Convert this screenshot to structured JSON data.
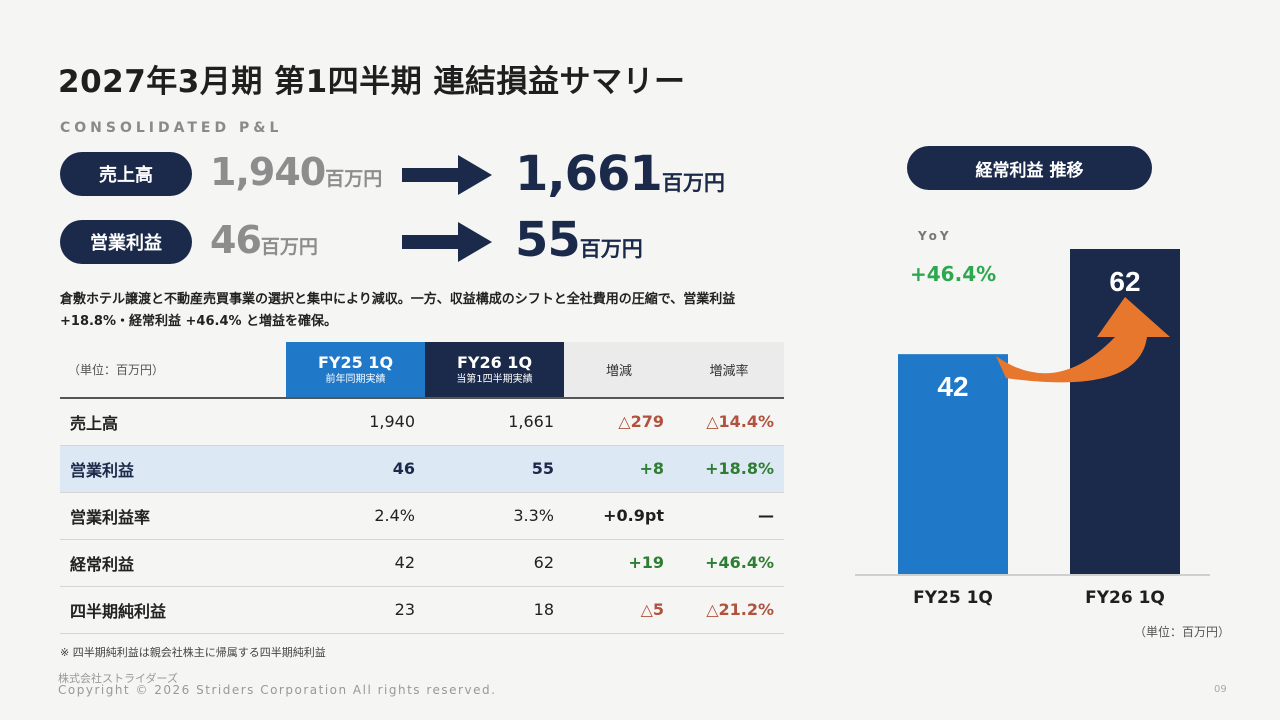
{
  "header": {
    "title": "2027年3月期 第1四半期 連結損益サマリー",
    "subtitle": "CONSOLIDATED P&L"
  },
  "kpis": [
    {
      "label": "売上高",
      "prev": "1,940",
      "curr": "1,661",
      "unit": "百万円"
    },
    {
      "label": "営業利益",
      "prev": "46",
      "curr": "55",
      "unit": "百万円"
    }
  ],
  "description": "倉敷ホテル譲渡と不動産売買事業の選択と集中により減収。一方、収益構成のシフトと全社費用の圧縮で、営業利益 +18.8%・経常利益 +46.4% と増益を確保。",
  "table": {
    "unit_label": "（単位：百万円）",
    "col_fy25": "FY25 1Q",
    "col_fy25_sub": "前年同期実績",
    "col_fy26": "FY26 1Q",
    "col_fy26_sub": "当第1四半期実績",
    "col_diff": "増減",
    "col_rate": "増減率",
    "rows": [
      {
        "label": "売上高",
        "fy25": "1,940",
        "fy26": "1,661",
        "diff": "△279",
        "rate": "△14.4%"
      },
      {
        "label": "営業利益",
        "fy25": "46",
        "fy26": "55",
        "diff": "+8",
        "rate": "+18.8%"
      },
      {
        "label": "営業利益率",
        "fy25": "2.4%",
        "fy26": "3.3%",
        "diff": "+0.9pt",
        "rate": "—"
      },
      {
        "label": "経常利益",
        "fy25": "42",
        "fy26": "62",
        "diff": "+19",
        "rate": "+46.4%"
      },
      {
        "label": "四半期純利益",
        "fy25": "23",
        "fy26": "18",
        "diff": "△5",
        "rate": "△21.2%"
      }
    ]
  },
  "footnote": "※ 四半期純利益は親会社株主に帰属する四半期純利益",
  "footer": {
    "company": "株式会社ストライダーズ",
    "copyright": "Copyright © 2026 Striders Corporation All rights reserved.",
    "page": "09"
  },
  "chart_panel": {
    "title": "経常利益 推移",
    "yoy_label": "YoY",
    "yoy_value": "+46.4%",
    "unit": "（単位：百万円）"
  },
  "chart_data": {
    "type": "bar",
    "categories": [
      "FY25 1Q",
      "FY26 1Q"
    ],
    "values": [
      42,
      62
    ],
    "colors": [
      "#1f78c8",
      "#1b2a4a"
    ],
    "arrow_color": "#e8772e",
    "title": "経常利益 推移",
    "xlabel": "",
    "ylabel": ""
  },
  "colors": {
    "navy": "#1b2a4a",
    "blue": "#1f78c8",
    "green": "#2e7d32",
    "red": "#b0523d",
    "orange": "#e8772e"
  }
}
